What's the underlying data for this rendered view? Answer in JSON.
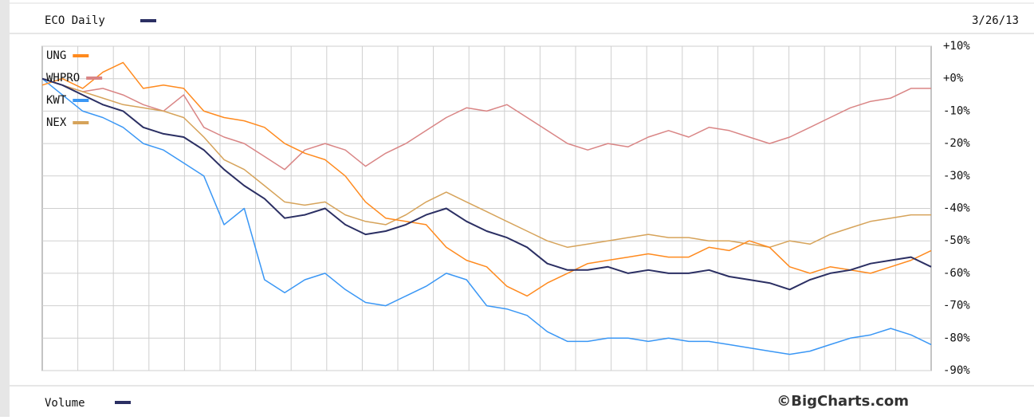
{
  "chart_data": {
    "type": "line",
    "title": "ECO Daily",
    "date": "3/26/13",
    "volume_label": "Volume",
    "source": "©BigCharts.com",
    "ylim": [
      -90,
      10
    ],
    "yticks": [
      {
        "value": 10,
        "label": "+10%"
      },
      {
        "value": 0,
        "label": "+0%"
      },
      {
        "value": -10,
        "label": "-10%"
      },
      {
        "value": -20,
        "label": "-20%"
      },
      {
        "value": -30,
        "label": "-30%"
      },
      {
        "value": -40,
        "label": "-40%"
      },
      {
        "value": -50,
        "label": "-50%"
      },
      {
        "value": -60,
        "label": "-60%"
      },
      {
        "value": -70,
        "label": "-70%"
      },
      {
        "value": -80,
        "label": "-80%"
      },
      {
        "value": -90,
        "label": "-90%"
      }
    ],
    "grid": true,
    "series": [
      {
        "color": "#2b2f63",
        "values": [
          0,
          -2,
          -5,
          -8,
          -10,
          -15,
          -17,
          -18,
          -22,
          -28,
          -33,
          -37,
          -43,
          -42,
          -40,
          -45,
          -48,
          -47,
          -45,
          -42,
          -40,
          -44,
          -47,
          -49,
          -52,
          -57,
          -59,
          -59,
          -58,
          -60,
          -59,
          -60,
          -60,
          -59,
          -61,
          -62,
          -63,
          -65,
          -62,
          -60,
          -59,
          -57,
          -56,
          -55,
          -58
        ]
      },
      {
        "name": "UNG",
        "color": "#ff8a1e",
        "values": [
          -2,
          0,
          -3,
          2,
          5,
          -3,
          -2,
          -3,
          -10,
          -12,
          -13,
          -15,
          -20,
          -23,
          -25,
          -30,
          -38,
          -43,
          -44,
          -45,
          -52,
          -56,
          -58,
          -64,
          -67,
          -63,
          -60,
          -57,
          -56,
          -55,
          -54,
          -55,
          -55,
          -52,
          -53,
          -50,
          -52,
          -58,
          -60,
          -58,
          -59,
          -60,
          -58,
          -56,
          -53
        ]
      },
      {
        "name": "WHPRO",
        "color": "#d98585",
        "values": [
          0,
          -2,
          -4,
          -3,
          -5,
          -8,
          -10,
          -5,
          -15,
          -18,
          -20,
          -24,
          -28,
          -22,
          -20,
          -22,
          -27,
          -23,
          -20,
          -16,
          -12,
          -9,
          -10,
          -8,
          -12,
          -16,
          -20,
          -22,
          -20,
          -21,
          -18,
          -16,
          -18,
          -15,
          -16,
          -18,
          -20,
          -18,
          -15,
          -12,
          -9,
          -7,
          -6,
          -3,
          -3
        ]
      },
      {
        "name": "KWT",
        "color": "#3a97f5",
        "values": [
          0,
          -5,
          -10,
          -12,
          -15,
          -20,
          -22,
          -26,
          -30,
          -45,
          -40,
          -62,
          -66,
          -62,
          -60,
          -65,
          -69,
          -70,
          -67,
          -64,
          -60,
          -62,
          -70,
          -71,
          -73,
          -78,
          -81,
          -81,
          -80,
          -80,
          -81,
          -80,
          -81,
          -81,
          -82,
          -83,
          -84,
          -85,
          -84,
          -82,
          -80,
          -79,
          -77,
          -79,
          -82
        ]
      },
      {
        "name": "NEX",
        "color": "#d6a35a",
        "values": [
          0,
          -2,
          -4,
          -6,
          -8,
          -9,
          -10,
          -12,
          -18,
          -25,
          -28,
          -33,
          -38,
          -39,
          -38,
          -42,
          -44,
          -45,
          -42,
          -38,
          -35,
          -38,
          -41,
          -44,
          -47,
          -50,
          -52,
          -51,
          -50,
          -49,
          -48,
          -49,
          -49,
          -50,
          -50,
          -51,
          -52,
          -50,
          -51,
          -48,
          -46,
          -44,
          -43,
          -42,
          -42
        ]
      }
    ]
  }
}
